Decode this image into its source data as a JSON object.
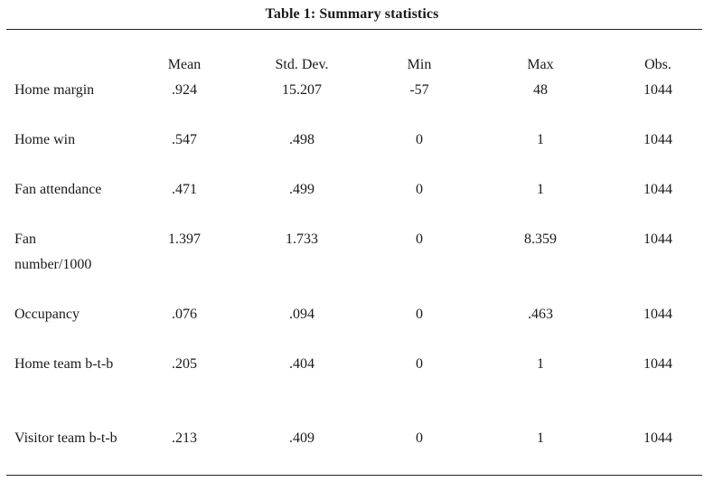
{
  "table": {
    "caption": "Table 1: Summary statistics",
    "headers": [
      "Mean",
      "Std. Dev.",
      "Min",
      "Max",
      "Obs."
    ],
    "rows": [
      {
        "label": "Home margin",
        "mean": ".924",
        "sd": "15.207",
        "min": "-57",
        "max": "48",
        "obs": "1044"
      },
      {
        "label": "Home win",
        "mean": ".547",
        "sd": ".498",
        "min": "0",
        "max": "1",
        "obs": "1044"
      },
      {
        "label": "Fan attendance",
        "mean": ".471",
        "sd": ".499",
        "min": "0",
        "max": "1",
        "obs": "1044"
      },
      {
        "label": "Fan number/1000",
        "mean": "1.397",
        "sd": "1.733",
        "min": "0",
        "max": "8.359",
        "obs": "1044"
      },
      {
        "label": "Occupancy",
        "mean": ".076",
        "sd": ".094",
        "min": "0",
        "max": ".463",
        "obs": "1044"
      },
      {
        "label": "Home team b-t-b",
        "mean": ".205",
        "sd": ".404",
        "min": "0",
        "max": "1",
        "obs": "1044"
      },
      {
        "label": "Visitor team b-t-b",
        "mean": ".213",
        "sd": ".409",
        "min": "0",
        "max": "1",
        "obs": "1044"
      }
    ]
  }
}
